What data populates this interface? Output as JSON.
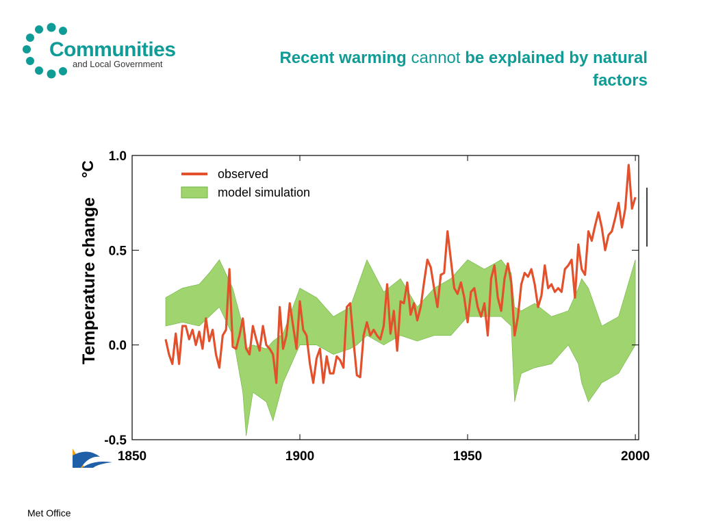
{
  "logo": {
    "name": "Communities",
    "subtitle": "and Local Government",
    "color": "#0f9b96"
  },
  "slide": {
    "title_part1": "Recent warming",
    "title_part2": "cannot",
    "title_part3": "be explained by natural factors",
    "footer": "Met Office"
  },
  "chart_data": {
    "type": "line",
    "title": "",
    "xlabel": "",
    "ylabel": "Temperature change",
    "ylabel_unit": "°C",
    "xlim": [
      1850,
      2001
    ],
    "ylim": [
      -0.5,
      1.0
    ],
    "xticks": [
      1850,
      1900,
      1950,
      2000
    ],
    "yticks": [
      1.0,
      0.5,
      0.0,
      -0.5
    ],
    "ytick_labels": [
      "1.0",
      "0.5",
      "0.0",
      "-0.5"
    ],
    "legend": {
      "placement": "top-left",
      "entries": [
        "observed",
        "model simulation"
      ]
    },
    "series": [
      {
        "name": "observed",
        "kind": "line",
        "color": "#e2502c",
        "x": [
          1860,
          1861,
          1862,
          1863,
          1864,
          1865,
          1866,
          1867,
          1868,
          1869,
          1870,
          1871,
          1872,
          1873,
          1874,
          1875,
          1876,
          1877,
          1878,
          1879,
          1880,
          1881,
          1882,
          1883,
          1884,
          1885,
          1886,
          1887,
          1888,
          1889,
          1890,
          1891,
          1892,
          1893,
          1894,
          1895,
          1896,
          1897,
          1898,
          1899,
          1900,
          1901,
          1902,
          1903,
          1904,
          1905,
          1906,
          1907,
          1908,
          1909,
          1910,
          1911,
          1912,
          1913,
          1914,
          1915,
          1916,
          1917,
          1918,
          1919,
          1920,
          1921,
          1922,
          1923,
          1924,
          1925,
          1926,
          1927,
          1928,
          1929,
          1930,
          1931,
          1932,
          1933,
          1934,
          1935,
          1936,
          1937,
          1938,
          1939,
          1940,
          1941,
          1942,
          1943,
          1944,
          1945,
          1946,
          1947,
          1948,
          1949,
          1950,
          1951,
          1952,
          1953,
          1954,
          1955,
          1956,
          1957,
          1958,
          1959,
          1960,
          1961,
          1962,
          1963,
          1964,
          1965,
          1966,
          1967,
          1968,
          1969,
          1970,
          1971,
          1972,
          1973,
          1974,
          1975,
          1976,
          1977,
          1978,
          1979,
          1980,
          1981,
          1982,
          1983,
          1984,
          1985,
          1986,
          1987,
          1988,
          1989,
          1990,
          1991,
          1992,
          1993,
          1994,
          1995,
          1996,
          1997,
          1998,
          1999,
          2000
        ],
        "values": [
          0.03,
          -0.05,
          -0.1,
          0.06,
          -0.1,
          0.1,
          0.1,
          0.03,
          0.08,
          0.0,
          0.07,
          -0.02,
          0.14,
          0.02,
          0.08,
          -0.05,
          -0.12,
          0.05,
          0.08,
          0.4,
          -0.01,
          -0.02,
          0.05,
          0.14,
          -0.02,
          -0.05,
          0.1,
          0.03,
          -0.03,
          0.1,
          0.0,
          -0.02,
          -0.05,
          -0.2,
          0.2,
          -0.02,
          0.05,
          0.22,
          0.1,
          -0.02,
          0.23,
          0.08,
          0.05,
          -0.1,
          -0.2,
          -0.07,
          -0.02,
          -0.2,
          -0.06,
          -0.15,
          -0.15,
          -0.06,
          -0.08,
          -0.12,
          0.2,
          0.22,
          0.02,
          -0.16,
          -0.17,
          0.05,
          0.12,
          0.05,
          0.08,
          0.05,
          0.03,
          0.1,
          0.32,
          0.06,
          0.18,
          -0.03,
          0.23,
          0.22,
          0.33,
          0.16,
          0.22,
          0.13,
          0.2,
          0.33,
          0.45,
          0.41,
          0.3,
          0.2,
          0.37,
          0.38,
          0.6,
          0.45,
          0.3,
          0.27,
          0.33,
          0.25,
          0.12,
          0.28,
          0.3,
          0.2,
          0.15,
          0.22,
          0.05,
          0.35,
          0.42,
          0.25,
          0.18,
          0.35,
          0.43,
          0.33,
          0.05,
          0.15,
          0.32,
          0.38,
          0.36,
          0.4,
          0.32,
          0.2,
          0.26,
          0.42,
          0.3,
          0.32,
          0.28,
          0.3,
          0.28,
          0.4,
          0.42,
          0.45,
          0.25,
          0.53,
          0.4,
          0.37,
          0.6,
          0.55,
          0.63,
          0.7,
          0.62,
          0.5,
          0.58,
          0.6,
          0.67,
          0.75,
          0.62,
          0.72,
          0.95,
          0.72,
          0.78
        ]
      },
      {
        "name": "model simulation",
        "kind": "band",
        "color": "#9fd46e",
        "edge_color": "#6db33f",
        "x": [
          1860,
          1865,
          1870,
          1873,
          1876,
          1880,
          1883,
          1884,
          1886,
          1890,
          1892,
          1895,
          1900,
          1905,
          1910,
          1915,
          1917,
          1920,
          1925,
          1930,
          1935,
          1940,
          1945,
          1950,
          1955,
          1960,
          1963,
          1964,
          1966,
          1970,
          1975,
          1980,
          1983,
          1984,
          1986,
          1990,
          1995,
          2000
        ],
        "upper": [
          0.25,
          0.3,
          0.32,
          0.38,
          0.45,
          0.3,
          0.1,
          -0.02,
          0.0,
          -0.02,
          0.02,
          0.06,
          0.3,
          0.25,
          0.15,
          0.2,
          0.3,
          0.45,
          0.28,
          0.35,
          0.2,
          0.3,
          0.35,
          0.45,
          0.4,
          0.45,
          0.38,
          0.2,
          0.18,
          0.22,
          0.15,
          0.18,
          0.3,
          0.35,
          0.3,
          0.1,
          0.15,
          0.45
        ],
        "lower": [
          0.1,
          0.12,
          0.1,
          0.15,
          0.2,
          0.05,
          -0.25,
          -0.48,
          -0.25,
          -0.3,
          -0.4,
          -0.2,
          0.0,
          0.0,
          -0.05,
          -0.02,
          0.0,
          0.05,
          0.0,
          0.05,
          0.02,
          0.05,
          0.05,
          0.15,
          0.15,
          0.15,
          0.1,
          -0.3,
          -0.15,
          -0.12,
          -0.1,
          0.0,
          -0.1,
          -0.2,
          -0.3,
          -0.2,
          -0.15,
          0.0
        ]
      }
    ]
  }
}
